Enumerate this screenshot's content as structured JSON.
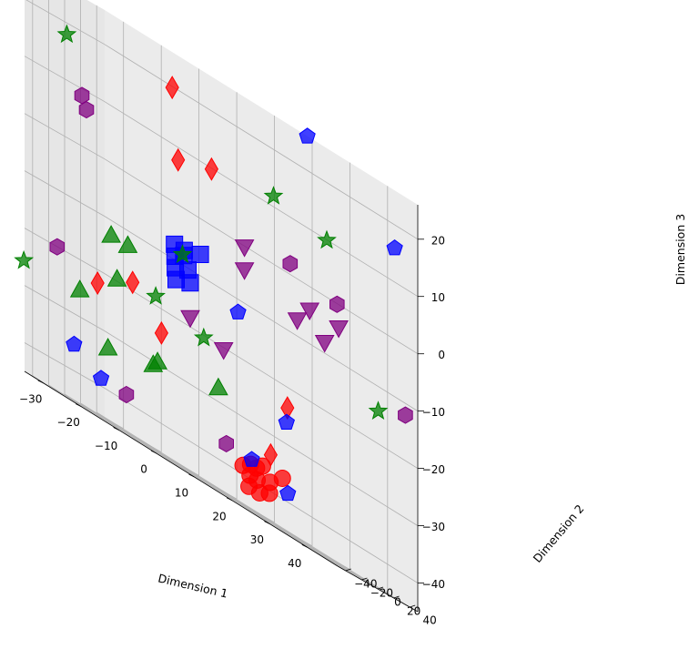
{
  "chart_data": {
    "type": "scatter3d",
    "title": "",
    "xlabel": "Dimension 1",
    "ylabel": "Dimension 2",
    "zlabel": "Dimension 3",
    "xlim": [
      -35,
      48
    ],
    "ylim": [
      -50,
      50
    ],
    "zlim": [
      -45,
      26
    ],
    "xticks": [
      -30,
      -20,
      -10,
      0,
      10,
      20,
      30,
      40
    ],
    "yticks": [
      -40,
      -20,
      0,
      20,
      40
    ],
    "zticks": [
      -40,
      -30,
      -20,
      -10,
      0,
      10,
      20
    ],
    "grid": true,
    "series": [
      {
        "name": "circles",
        "marker": "circle",
        "color": "#ff0000",
        "points": [
          [
            14,
            -8,
            -38
          ],
          [
            16,
            -8,
            -37
          ],
          [
            18,
            -10,
            -37
          ],
          [
            20,
            -12,
            -36
          ],
          [
            18,
            -6,
            -41
          ],
          [
            21,
            -8,
            -40
          ],
          [
            16,
            -10,
            -41
          ],
          [
            19,
            -14,
            -39
          ],
          [
            22,
            -12,
            -38
          ],
          [
            24,
            -6,
            -36
          ],
          [
            15,
            -4,
            -39
          ]
        ]
      },
      {
        "name": "squares",
        "marker": "square",
        "color": "#0000ff",
        "points": [
          [
            -8,
            10,
            -7
          ],
          [
            -5,
            8,
            -7
          ],
          [
            -6,
            12,
            -8
          ],
          [
            -7,
            6,
            -9
          ],
          [
            -4,
            8,
            -10
          ],
          [
            -8,
            11,
            -11
          ],
          [
            -3,
            6,
            -12
          ],
          [
            -8,
            12,
            -13
          ],
          [
            -2,
            14,
            -6
          ]
        ]
      },
      {
        "name": "diamonds",
        "marker": "diamond",
        "color": "#ff0000",
        "points": [
          [
            -12,
            26,
            20
          ],
          [
            -10,
            24,
            8
          ],
          [
            -2,
            28,
            10
          ],
          [
            -14,
            -14,
            -18
          ],
          [
            -25,
            -6,
            -22
          ],
          [
            -14,
            22,
            -24
          ],
          [
            30,
            -28,
            -23
          ],
          [
            26,
            -30,
            -33
          ]
        ]
      },
      {
        "name": "pentagons",
        "marker": "pentagon",
        "color": "#0000ff",
        "points": [
          [
            -24,
            -40,
            -35
          ],
          [
            -16,
            -44,
            -38
          ],
          [
            8,
            14,
            -12
          ],
          [
            20,
            18,
            -26
          ],
          [
            18,
            -16,
            -36
          ],
          [
            28,
            -18,
            -38
          ],
          [
            20,
            44,
            26
          ],
          [
            44,
            40,
            16
          ]
        ]
      },
      {
        "name": "triangles",
        "marker": "triangle",
        "color": "#008000",
        "points": [
          [
            -18,
            -22,
            -12
          ],
          [
            -14,
            -20,
            -12
          ],
          [
            -16,
            -24,
            -19
          ],
          [
            -28,
            -14,
            -25
          ],
          [
            -6,
            -26,
            -30
          ],
          [
            -4,
            -30,
            -29
          ],
          [
            10,
            -20,
            -27
          ],
          [
            -18,
            -26,
            -32
          ]
        ]
      },
      {
        "name": "stars",
        "marker": "star",
        "color": "#008000",
        "points": [
          [
            -34,
            -2,
            18
          ],
          [
            14,
            30,
            12
          ],
          [
            26,
            40,
            10
          ],
          [
            -8,
            20,
            -8
          ],
          [
            -10,
            -4,
            -18
          ],
          [
            4,
            -10,
            -20
          ],
          [
            46,
            10,
            -14
          ],
          [
            -42,
            -18,
            -26
          ]
        ]
      },
      {
        "name": "hexagons",
        "marker": "hexagon",
        "color": "#800080",
        "points": [
          [
            -30,
            -2,
            9
          ],
          [
            -29,
            -1,
            7
          ],
          [
            18,
            32,
            2
          ],
          [
            30,
            34,
            0
          ],
          [
            46,
            44,
            -12
          ],
          [
            -34,
            -14,
            -20
          ],
          [
            10,
            -10,
            -36
          ],
          [
            -8,
            -50,
            -38
          ]
        ]
      },
      {
        "name": "inverted_triangles",
        "marker": "triangle_down",
        "color": "#800080",
        "points": [
          [
            8,
            22,
            0
          ],
          [
            8,
            22,
            -4
          ],
          [
            24,
            28,
            -4
          ],
          [
            22,
            22,
            -7
          ],
          [
            28,
            28,
            -8
          ],
          [
            30,
            36,
            -4
          ],
          [
            0,
            -8,
            -18
          ],
          [
            8,
            -4,
            -20
          ]
        ]
      }
    ]
  }
}
